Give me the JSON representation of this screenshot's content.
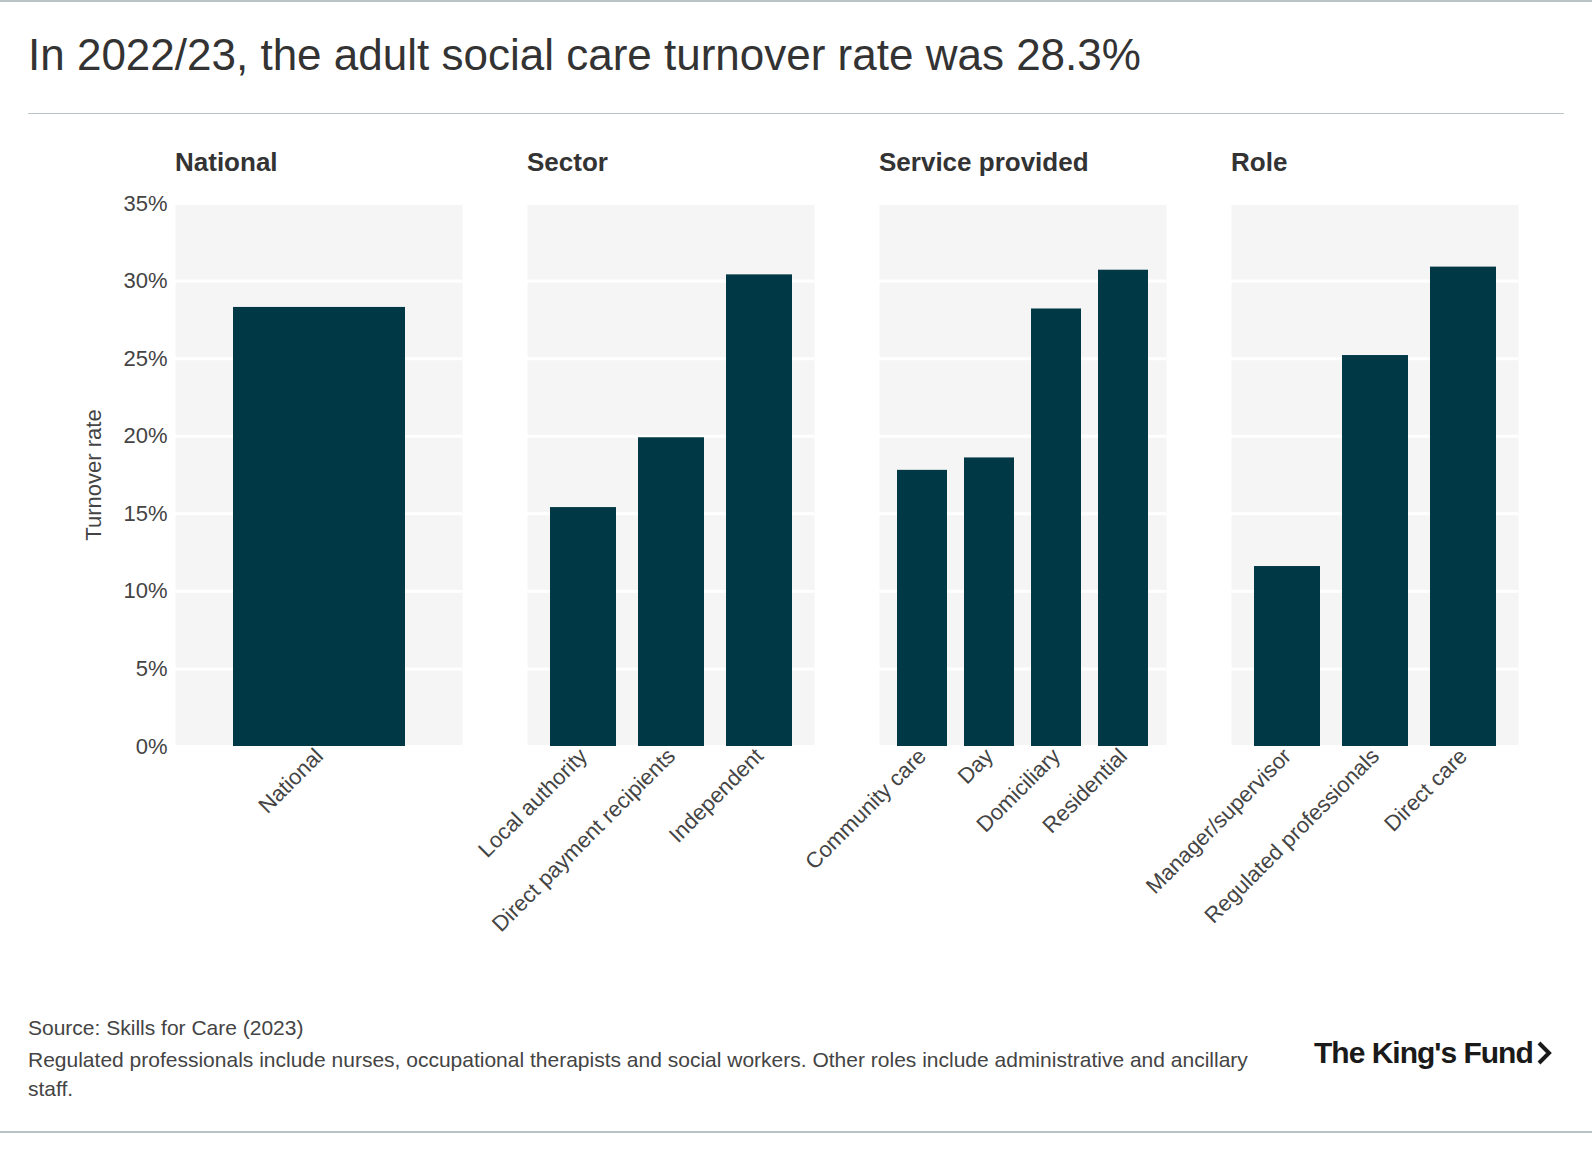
{
  "title": "In 2022/23, the adult social care turnover rate was 28.3%",
  "source": "Source: Skills for Care (2023)",
  "note": "Regulated professionals include nurses, occupational therapists and social workers. Other roles include administrative and ancillary staff.",
  "logo": "The King's Fund",
  "chart_data": [
    {
      "type": "bar",
      "title": "National",
      "ylabel": "Turnover rate",
      "categories": [
        "National"
      ],
      "values": [
        28.3
      ],
      "color": "#003846",
      "ylim": [
        0,
        35
      ],
      "yticks": [
        {
          "value": 0,
          "label": "0%"
        },
        {
          "value": 5,
          "label": "5%"
        },
        {
          "value": 10,
          "label": "10%"
        },
        {
          "value": 15,
          "label": "15%"
        },
        {
          "value": 20,
          "label": "20%"
        },
        {
          "value": 25,
          "label": "25%"
        },
        {
          "value": 30,
          "label": "30%"
        },
        {
          "value": 35,
          "label": "35%"
        }
      ],
      "grid": true
    },
    {
      "type": "bar",
      "title": "Sector",
      "categories": [
        "Local authority",
        "Direct payment recipients",
        "Independent"
      ],
      "values": [
        15.4,
        19.9,
        30.4
      ],
      "color": "#003846",
      "ylim": [
        0,
        35
      ],
      "yticks": [
        {
          "value": 0,
          "label": "0%"
        },
        {
          "value": 5,
          "label": "5%"
        },
        {
          "value": 10,
          "label": "10%"
        },
        {
          "value": 15,
          "label": "15%"
        },
        {
          "value": 20,
          "label": "20%"
        },
        {
          "value": 25,
          "label": "25%"
        },
        {
          "value": 30,
          "label": "30%"
        },
        {
          "value": 35,
          "label": "35%"
        }
      ],
      "grid": true,
      "tick_labels": "x"
    },
    {
      "type": "bar",
      "title": "Service provided",
      "categories": [
        "Community care",
        "Day",
        "Domiciliary",
        "Residential"
      ],
      "values": [
        17.8,
        18.6,
        28.2,
        30.7
      ],
      "color": "#003846",
      "ylim": [
        0,
        35
      ],
      "yticks": [
        {
          "value": 0,
          "label": "0%"
        },
        {
          "value": 5,
          "label": "5%"
        },
        {
          "value": 10,
          "label": "10%"
        },
        {
          "value": 15,
          "label": "15%"
        },
        {
          "value": 20,
          "label": "20%"
        },
        {
          "value": 25,
          "label": "25%"
        },
        {
          "value": 30,
          "label": "30%"
        },
        {
          "value": 35,
          "label": "35%"
        }
      ],
      "grid": true,
      "tick_labels": "x"
    },
    {
      "type": "bar",
      "title": "Role",
      "categories": [
        "Manager/supervisor",
        "Regulated professionals",
        "Direct care"
      ],
      "values": [
        11.6,
        25.2,
        30.9
      ],
      "color": "#003846",
      "ylim": [
        0,
        35
      ],
      "yticks": [
        {
          "value": 0,
          "label": "0%"
        },
        {
          "value": 5,
          "label": "5%"
        },
        {
          "value": 10,
          "label": "10%"
        },
        {
          "value": 15,
          "label": "15%"
        },
        {
          "value": 20,
          "label": "20%"
        },
        {
          "value": 25,
          "label": "25%"
        },
        {
          "value": 30,
          "label": "30%"
        },
        {
          "value": 35,
          "label": "35%"
        }
      ],
      "grid": true,
      "tick_labels": "x"
    }
  ]
}
